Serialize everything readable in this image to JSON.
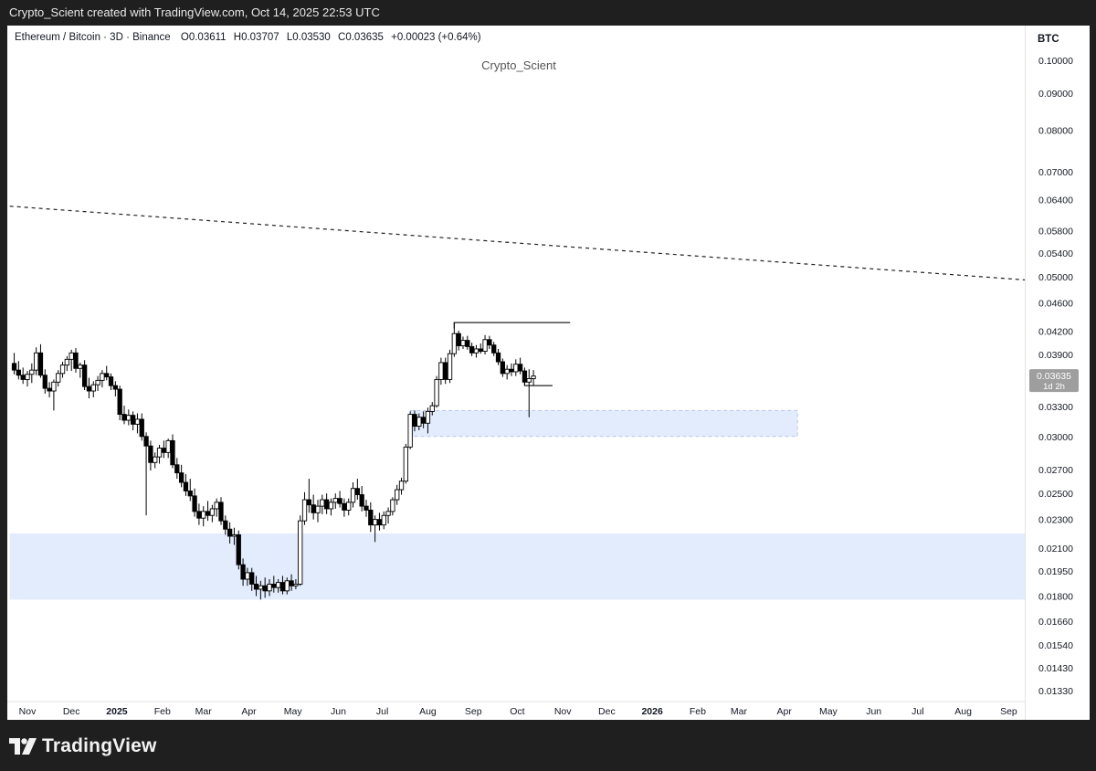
{
  "header": {
    "caption": "Crypto_Scient created with TradingView.com, Oct 14, 2025 22:53 UTC"
  },
  "legend": {
    "symbol": "Ethereum / Bitcoin · 3D · Binance",
    "o_label": "O",
    "o_value": "0.03611",
    "h_label": "H",
    "h_value": "0.03707",
    "l_label": "L",
    "l_value": "0.03530",
    "c_label": "C",
    "c_value": "0.03635",
    "change": "+0.00023 (+0.64%)"
  },
  "watermark": "Crypto_Scient",
  "footer": {
    "brand": "TradingView",
    "logo_icon": "tradingview-logo-icon"
  },
  "colors": {
    "up": "#ffffff",
    "down": "#000000",
    "zone": "#e3ecfd",
    "zone_border": "#b8c7ea",
    "price_label_bg": "#9e9e9e"
  },
  "chart_data": {
    "type": "candlestick",
    "title": "Ethereum / Bitcoin · 3D · Binance",
    "currency_label": "BTC",
    "y_scale": "log",
    "y_ticks": [
      "0.10000",
      "0.09000",
      "0.08000",
      "0.07000",
      "0.06400",
      "0.05800",
      "0.05400",
      "0.05000",
      "0.04600",
      "0.04200",
      "0.03900",
      "0.03300",
      "0.03000",
      "0.02700",
      "0.02500",
      "0.02300",
      "0.02100",
      "0.01950",
      "0.01800",
      "0.01660",
      "0.01540",
      "0.01430",
      "0.01330"
    ],
    "x_ticks": [
      "Nov",
      "Dec",
      "2025",
      "Feb",
      "Mar",
      "Apr",
      "May",
      "Jun",
      "Jul",
      "Aug",
      "Sep",
      "Oct",
      "Nov",
      "Dec",
      "2026",
      "Feb",
      "Mar",
      "Apr",
      "May",
      "Jun",
      "Jul",
      "Aug",
      "Sep"
    ],
    "x_start": "2024-11-01",
    "last_price": {
      "value": "0.03635",
      "countdown": "1d 2h"
    },
    "candles": [
      {
        "d": "2024-10-23",
        "o": 0.0379,
        "h": 0.0392,
        "l": 0.0366,
        "c": 0.0371
      },
      {
        "d": "2024-10-26",
        "o": 0.0371,
        "h": 0.0382,
        "l": 0.036,
        "c": 0.0365
      },
      {
        "d": "2024-10-29",
        "o": 0.0365,
        "h": 0.0374,
        "l": 0.0355,
        "c": 0.036
      },
      {
        "d": "2024-11-01",
        "o": 0.036,
        "h": 0.037,
        "l": 0.0352,
        "c": 0.0366
      },
      {
        "d": "2024-11-04",
        "o": 0.0366,
        "h": 0.0379,
        "l": 0.0356,
        "c": 0.0371
      },
      {
        "d": "2024-11-07",
        "o": 0.0371,
        "h": 0.0399,
        "l": 0.0365,
        "c": 0.0392
      },
      {
        "d": "2024-11-10",
        "o": 0.0392,
        "h": 0.0403,
        "l": 0.0362,
        "c": 0.0365
      },
      {
        "d": "2024-11-13",
        "o": 0.0365,
        "h": 0.0372,
        "l": 0.0344,
        "c": 0.035
      },
      {
        "d": "2024-11-16",
        "o": 0.035,
        "h": 0.0357,
        "l": 0.034,
        "c": 0.0347
      },
      {
        "d": "2024-11-19",
        "o": 0.0347,
        "h": 0.036,
        "l": 0.0326,
        "c": 0.0357
      },
      {
        "d": "2024-11-22",
        "o": 0.0357,
        "h": 0.0371,
        "l": 0.0352,
        "c": 0.0367
      },
      {
        "d": "2024-11-25",
        "o": 0.0367,
        "h": 0.0381,
        "l": 0.0362,
        "c": 0.0377
      },
      {
        "d": "2024-11-28",
        "o": 0.0377,
        "h": 0.0388,
        "l": 0.037,
        "c": 0.0384
      },
      {
        "d": "2024-12-01",
        "o": 0.0384,
        "h": 0.0396,
        "l": 0.037,
        "c": 0.0392
      },
      {
        "d": "2024-12-04",
        "o": 0.0392,
        "h": 0.0398,
        "l": 0.0368,
        "c": 0.0373
      },
      {
        "d": "2024-12-07",
        "o": 0.0373,
        "h": 0.038,
        "l": 0.0362,
        "c": 0.0377
      },
      {
        "d": "2024-12-10",
        "o": 0.0377,
        "h": 0.0383,
        "l": 0.0348,
        "c": 0.0352
      },
      {
        "d": "2024-12-13",
        "o": 0.0352,
        "h": 0.0362,
        "l": 0.0339,
        "c": 0.0347
      },
      {
        "d": "2024-12-16",
        "o": 0.0347,
        "h": 0.0358,
        "l": 0.034,
        "c": 0.0354
      },
      {
        "d": "2024-12-19",
        "o": 0.0354,
        "h": 0.0364,
        "l": 0.0347,
        "c": 0.0359
      },
      {
        "d": "2024-12-22",
        "o": 0.0359,
        "h": 0.0371,
        "l": 0.0351,
        "c": 0.0367
      },
      {
        "d": "2024-12-25",
        "o": 0.0367,
        "h": 0.0376,
        "l": 0.0359,
        "c": 0.0363
      },
      {
        "d": "2024-12-28",
        "o": 0.0363,
        "h": 0.0367,
        "l": 0.0348,
        "c": 0.0353
      },
      {
        "d": "2024-12-31",
        "o": 0.0353,
        "h": 0.0358,
        "l": 0.0341,
        "c": 0.0349
      },
      {
        "d": "2025-01-03",
        "o": 0.0349,
        "h": 0.0353,
        "l": 0.0316,
        "c": 0.0322
      },
      {
        "d": "2025-01-06",
        "o": 0.0322,
        "h": 0.0331,
        "l": 0.0312,
        "c": 0.0316
      },
      {
        "d": "2025-01-09",
        "o": 0.0316,
        "h": 0.0327,
        "l": 0.0311,
        "c": 0.0321
      },
      {
        "d": "2025-01-12",
        "o": 0.0321,
        "h": 0.0325,
        "l": 0.0306,
        "c": 0.0312
      },
      {
        "d": "2025-01-15",
        "o": 0.0312,
        "h": 0.0323,
        "l": 0.0303,
        "c": 0.0317
      },
      {
        "d": "2025-01-18",
        "o": 0.0317,
        "h": 0.0323,
        "l": 0.0296,
        "c": 0.03
      },
      {
        "d": "2025-01-21",
        "o": 0.03,
        "h": 0.0304,
        "l": 0.0233,
        "c": 0.0291
      },
      {
        "d": "2025-01-24",
        "o": 0.0291,
        "h": 0.0296,
        "l": 0.0269,
        "c": 0.0276
      },
      {
        "d": "2025-01-27",
        "o": 0.0276,
        "h": 0.0285,
        "l": 0.0271,
        "c": 0.0281
      },
      {
        "d": "2025-01-30",
        "o": 0.0281,
        "h": 0.0292,
        "l": 0.0275,
        "c": 0.0289
      },
      {
        "d": "2025-02-02",
        "o": 0.0289,
        "h": 0.0296,
        "l": 0.028,
        "c": 0.0285
      },
      {
        "d": "2025-02-05",
        "o": 0.0285,
        "h": 0.0298,
        "l": 0.028,
        "c": 0.0296
      },
      {
        "d": "2025-02-08",
        "o": 0.0296,
        "h": 0.0302,
        "l": 0.0271,
        "c": 0.0274
      },
      {
        "d": "2025-02-11",
        "o": 0.0274,
        "h": 0.028,
        "l": 0.0262,
        "c": 0.0267
      },
      {
        "d": "2025-02-14",
        "o": 0.0267,
        "h": 0.0274,
        "l": 0.0255,
        "c": 0.0259
      },
      {
        "d": "2025-02-17",
        "o": 0.0259,
        "h": 0.0266,
        "l": 0.0248,
        "c": 0.0252
      },
      {
        "d": "2025-02-20",
        "o": 0.0252,
        "h": 0.0262,
        "l": 0.0244,
        "c": 0.0248
      },
      {
        "d": "2025-02-23",
        "o": 0.0248,
        "h": 0.0254,
        "l": 0.0232,
        "c": 0.0236
      },
      {
        "d": "2025-02-26",
        "o": 0.0236,
        "h": 0.0242,
        "l": 0.0226,
        "c": 0.0231
      },
      {
        "d": "2025-03-01",
        "o": 0.0231,
        "h": 0.024,
        "l": 0.0225,
        "c": 0.0236
      },
      {
        "d": "2025-03-04",
        "o": 0.0236,
        "h": 0.0244,
        "l": 0.0229,
        "c": 0.0233
      },
      {
        "d": "2025-03-07",
        "o": 0.0233,
        "h": 0.0241,
        "l": 0.0228,
        "c": 0.0238
      },
      {
        "d": "2025-03-10",
        "o": 0.0238,
        "h": 0.0246,
        "l": 0.0232,
        "c": 0.0243
      },
      {
        "d": "2025-03-13",
        "o": 0.0243,
        "h": 0.0247,
        "l": 0.0226,
        "c": 0.0229
      },
      {
        "d": "2025-03-16",
        "o": 0.0229,
        "h": 0.0233,
        "l": 0.0219,
        "c": 0.0223
      },
      {
        "d": "2025-03-19",
        "o": 0.0223,
        "h": 0.0228,
        "l": 0.0213,
        "c": 0.0218
      },
      {
        "d": "2025-03-22",
        "o": 0.0218,
        "h": 0.0224,
        "l": 0.0212,
        "c": 0.0219
      },
      {
        "d": "2025-03-25",
        "o": 0.0219,
        "h": 0.0222,
        "l": 0.0196,
        "c": 0.0199
      },
      {
        "d": "2025-03-28",
        "o": 0.0199,
        "h": 0.0203,
        "l": 0.0186,
        "c": 0.019
      },
      {
        "d": "2025-03-31",
        "o": 0.019,
        "h": 0.0197,
        "l": 0.0186,
        "c": 0.0194
      },
      {
        "d": "2025-04-03",
        "o": 0.0194,
        "h": 0.0197,
        "l": 0.0183,
        "c": 0.0187
      },
      {
        "d": "2025-04-06",
        "o": 0.0187,
        "h": 0.0192,
        "l": 0.018,
        "c": 0.0184
      },
      {
        "d": "2025-04-09",
        "o": 0.0184,
        "h": 0.0189,
        "l": 0.0178,
        "c": 0.0186
      },
      {
        "d": "2025-04-12",
        "o": 0.0186,
        "h": 0.0191,
        "l": 0.0179,
        "c": 0.0183
      },
      {
        "d": "2025-04-15",
        "o": 0.0183,
        "h": 0.019,
        "l": 0.018,
        "c": 0.0187
      },
      {
        "d": "2025-04-18",
        "o": 0.0187,
        "h": 0.0192,
        "l": 0.0182,
        "c": 0.0185
      },
      {
        "d": "2025-04-21",
        "o": 0.0185,
        "h": 0.019,
        "l": 0.0182,
        "c": 0.0188
      },
      {
        "d": "2025-04-24",
        "o": 0.0188,
        "h": 0.0192,
        "l": 0.0181,
        "c": 0.0183
      },
      {
        "d": "2025-04-27",
        "o": 0.0183,
        "h": 0.0191,
        "l": 0.0181,
        "c": 0.0189
      },
      {
        "d": "2025-04-30",
        "o": 0.0189,
        "h": 0.0193,
        "l": 0.0183,
        "c": 0.0186
      },
      {
        "d": "2025-05-03",
        "o": 0.0186,
        "h": 0.019,
        "l": 0.0184,
        "c": 0.0187
      },
      {
        "d": "2025-05-06",
        "o": 0.0187,
        "h": 0.0233,
        "l": 0.0186,
        "c": 0.0229
      },
      {
        "d": "2025-05-09",
        "o": 0.0229,
        "h": 0.0251,
        "l": 0.0226,
        "c": 0.0245
      },
      {
        "d": "2025-05-12",
        "o": 0.0245,
        "h": 0.0262,
        "l": 0.0235,
        "c": 0.0241
      },
      {
        "d": "2025-05-15",
        "o": 0.0241,
        "h": 0.0249,
        "l": 0.023,
        "c": 0.0235
      },
      {
        "d": "2025-05-18",
        "o": 0.0235,
        "h": 0.0245,
        "l": 0.0228,
        "c": 0.024
      },
      {
        "d": "2025-05-21",
        "o": 0.024,
        "h": 0.0249,
        "l": 0.0234,
        "c": 0.0245
      },
      {
        "d": "2025-05-24",
        "o": 0.0245,
        "h": 0.025,
        "l": 0.0234,
        "c": 0.0238
      },
      {
        "d": "2025-05-27",
        "o": 0.0238,
        "h": 0.0246,
        "l": 0.0233,
        "c": 0.0243
      },
      {
        "d": "2025-05-30",
        "o": 0.0243,
        "h": 0.025,
        "l": 0.0238,
        "c": 0.0246
      },
      {
        "d": "2025-06-02",
        "o": 0.0246,
        "h": 0.0252,
        "l": 0.0239,
        "c": 0.0242
      },
      {
        "d": "2025-06-05",
        "o": 0.0242,
        "h": 0.0246,
        "l": 0.0232,
        "c": 0.0237
      },
      {
        "d": "2025-06-08",
        "o": 0.0237,
        "h": 0.0246,
        "l": 0.0233,
        "c": 0.0243
      },
      {
        "d": "2025-06-11",
        "o": 0.0243,
        "h": 0.0259,
        "l": 0.0239,
        "c": 0.0254
      },
      {
        "d": "2025-06-14",
        "o": 0.0254,
        "h": 0.0262,
        "l": 0.0245,
        "c": 0.0249
      },
      {
        "d": "2025-06-17",
        "o": 0.0249,
        "h": 0.0256,
        "l": 0.0236,
        "c": 0.024
      },
      {
        "d": "2025-06-20",
        "o": 0.024,
        "h": 0.0245,
        "l": 0.0232,
        "c": 0.0237
      },
      {
        "d": "2025-06-23",
        "o": 0.0237,
        "h": 0.0243,
        "l": 0.0221,
        "c": 0.0226
      },
      {
        "d": "2025-06-26",
        "o": 0.0226,
        "h": 0.0233,
        "l": 0.0214,
        "c": 0.023
      },
      {
        "d": "2025-06-29",
        "o": 0.023,
        "h": 0.0235,
        "l": 0.0222,
        "c": 0.0226
      },
      {
        "d": "2025-07-02",
        "o": 0.0226,
        "h": 0.0236,
        "l": 0.0223,
        "c": 0.0233
      },
      {
        "d": "2025-07-05",
        "o": 0.0233,
        "h": 0.0239,
        "l": 0.0227,
        "c": 0.0236
      },
      {
        "d": "2025-07-08",
        "o": 0.0236,
        "h": 0.0247,
        "l": 0.0233,
        "c": 0.0245
      },
      {
        "d": "2025-07-11",
        "o": 0.0245,
        "h": 0.0257,
        "l": 0.0241,
        "c": 0.0253
      },
      {
        "d": "2025-07-14",
        "o": 0.0253,
        "h": 0.0263,
        "l": 0.0249,
        "c": 0.026
      },
      {
        "d": "2025-07-17",
        "o": 0.026,
        "h": 0.0293,
        "l": 0.0258,
        "c": 0.029
      },
      {
        "d": "2025-07-20",
        "o": 0.029,
        "h": 0.0325,
        "l": 0.0288,
        "c": 0.0322
      },
      {
        "d": "2025-07-23",
        "o": 0.0322,
        "h": 0.0326,
        "l": 0.0305,
        "c": 0.031
      },
      {
        "d": "2025-07-26",
        "o": 0.031,
        "h": 0.0323,
        "l": 0.0306,
        "c": 0.0319
      },
      {
        "d": "2025-07-29",
        "o": 0.0319,
        "h": 0.0325,
        "l": 0.0308,
        "c": 0.0313
      },
      {
        "d": "2025-08-01",
        "o": 0.0313,
        "h": 0.0329,
        "l": 0.0303,
        "c": 0.0325
      },
      {
        "d": "2025-08-04",
        "o": 0.0325,
        "h": 0.0335,
        "l": 0.0321,
        "c": 0.0331
      },
      {
        "d": "2025-08-07",
        "o": 0.0331,
        "h": 0.0364,
        "l": 0.0329,
        "c": 0.036
      },
      {
        "d": "2025-08-10",
        "o": 0.036,
        "h": 0.0386,
        "l": 0.0354,
        "c": 0.038
      },
      {
        "d": "2025-08-13",
        "o": 0.038,
        "h": 0.0386,
        "l": 0.0355,
        "c": 0.036
      },
      {
        "d": "2025-08-16",
        "o": 0.036,
        "h": 0.0396,
        "l": 0.0356,
        "c": 0.0391
      },
      {
        "d": "2025-08-19",
        "o": 0.0391,
        "h": 0.0432,
        "l": 0.0387,
        "c": 0.0417
      },
      {
        "d": "2025-08-22",
        "o": 0.0417,
        "h": 0.0421,
        "l": 0.0395,
        "c": 0.0401
      },
      {
        "d": "2025-08-25",
        "o": 0.0401,
        "h": 0.0413,
        "l": 0.0397,
        "c": 0.0408
      },
      {
        "d": "2025-08-28",
        "o": 0.0408,
        "h": 0.0414,
        "l": 0.0396,
        "c": 0.04
      },
      {
        "d": "2025-08-31",
        "o": 0.04,
        "h": 0.0405,
        "l": 0.0388,
        "c": 0.0392
      },
      {
        "d": "2025-09-03",
        "o": 0.0392,
        "h": 0.0402,
        "l": 0.0386,
        "c": 0.0397
      },
      {
        "d": "2025-09-06",
        "o": 0.0397,
        "h": 0.0404,
        "l": 0.0391,
        "c": 0.0394
      },
      {
        "d": "2025-09-09",
        "o": 0.0394,
        "h": 0.0415,
        "l": 0.039,
        "c": 0.0409
      },
      {
        "d": "2025-09-12",
        "o": 0.0409,
        "h": 0.0414,
        "l": 0.0397,
        "c": 0.0402
      },
      {
        "d": "2025-09-15",
        "o": 0.0402,
        "h": 0.0406,
        "l": 0.0388,
        "c": 0.0392
      },
      {
        "d": "2025-09-18",
        "o": 0.0392,
        "h": 0.0397,
        "l": 0.0377,
        "c": 0.0381
      },
      {
        "d": "2025-09-21",
        "o": 0.0381,
        "h": 0.0385,
        "l": 0.0363,
        "c": 0.0367
      },
      {
        "d": "2025-09-24",
        "o": 0.0367,
        "h": 0.0377,
        "l": 0.036,
        "c": 0.0372
      },
      {
        "d": "2025-09-27",
        "o": 0.0372,
        "h": 0.0379,
        "l": 0.0364,
        "c": 0.0369
      },
      {
        "d": "2025-09-30",
        "o": 0.0369,
        "h": 0.0384,
        "l": 0.0364,
        "c": 0.0378
      },
      {
        "d": "2025-10-03",
        "o": 0.0378,
        "h": 0.0386,
        "l": 0.0366,
        "c": 0.037
      },
      {
        "d": "2025-10-06",
        "o": 0.037,
        "h": 0.0374,
        "l": 0.0354,
        "c": 0.0357
      },
      {
        "d": "2025-10-09",
        "o": 0.0357,
        "h": 0.0372,
        "l": 0.0319,
        "c": 0.0361
      },
      {
        "d": "2025-10-12",
        "o": 0.0361,
        "h": 0.0371,
        "l": 0.0353,
        "c": 0.0364
      }
    ],
    "zones": [
      {
        "name": "demand-zone-lower",
        "from": "2024-10-20",
        "to": "2026-10-01",
        "y_low": 0.0178,
        "y_high": 0.022
      },
      {
        "name": "fvg-zone",
        "from": "2025-07-20",
        "to": "2026-04-10",
        "y_low": 0.03,
        "y_high": 0.0326,
        "dashed": true
      }
    ],
    "lines": [
      {
        "name": "descending-trendline",
        "style": "dashed",
        "points": [
          [
            "2024-10-20",
            0.0627
          ],
          [
            "2026-10-01",
            0.0492
          ]
        ]
      },
      {
        "name": "swing-high-bracket",
        "style": "solid",
        "points": [
          [
            "2025-08-19",
            0.0424
          ],
          [
            "2025-08-19",
            0.0432
          ],
          [
            "2025-11-06",
            0.0432
          ]
        ]
      },
      {
        "name": "swing-low-bracket",
        "style": "solid",
        "points": [
          [
            "2025-10-06",
            0.0362
          ],
          [
            "2025-10-06",
            0.0353
          ],
          [
            "2025-10-25",
            0.0353
          ]
        ]
      }
    ]
  }
}
